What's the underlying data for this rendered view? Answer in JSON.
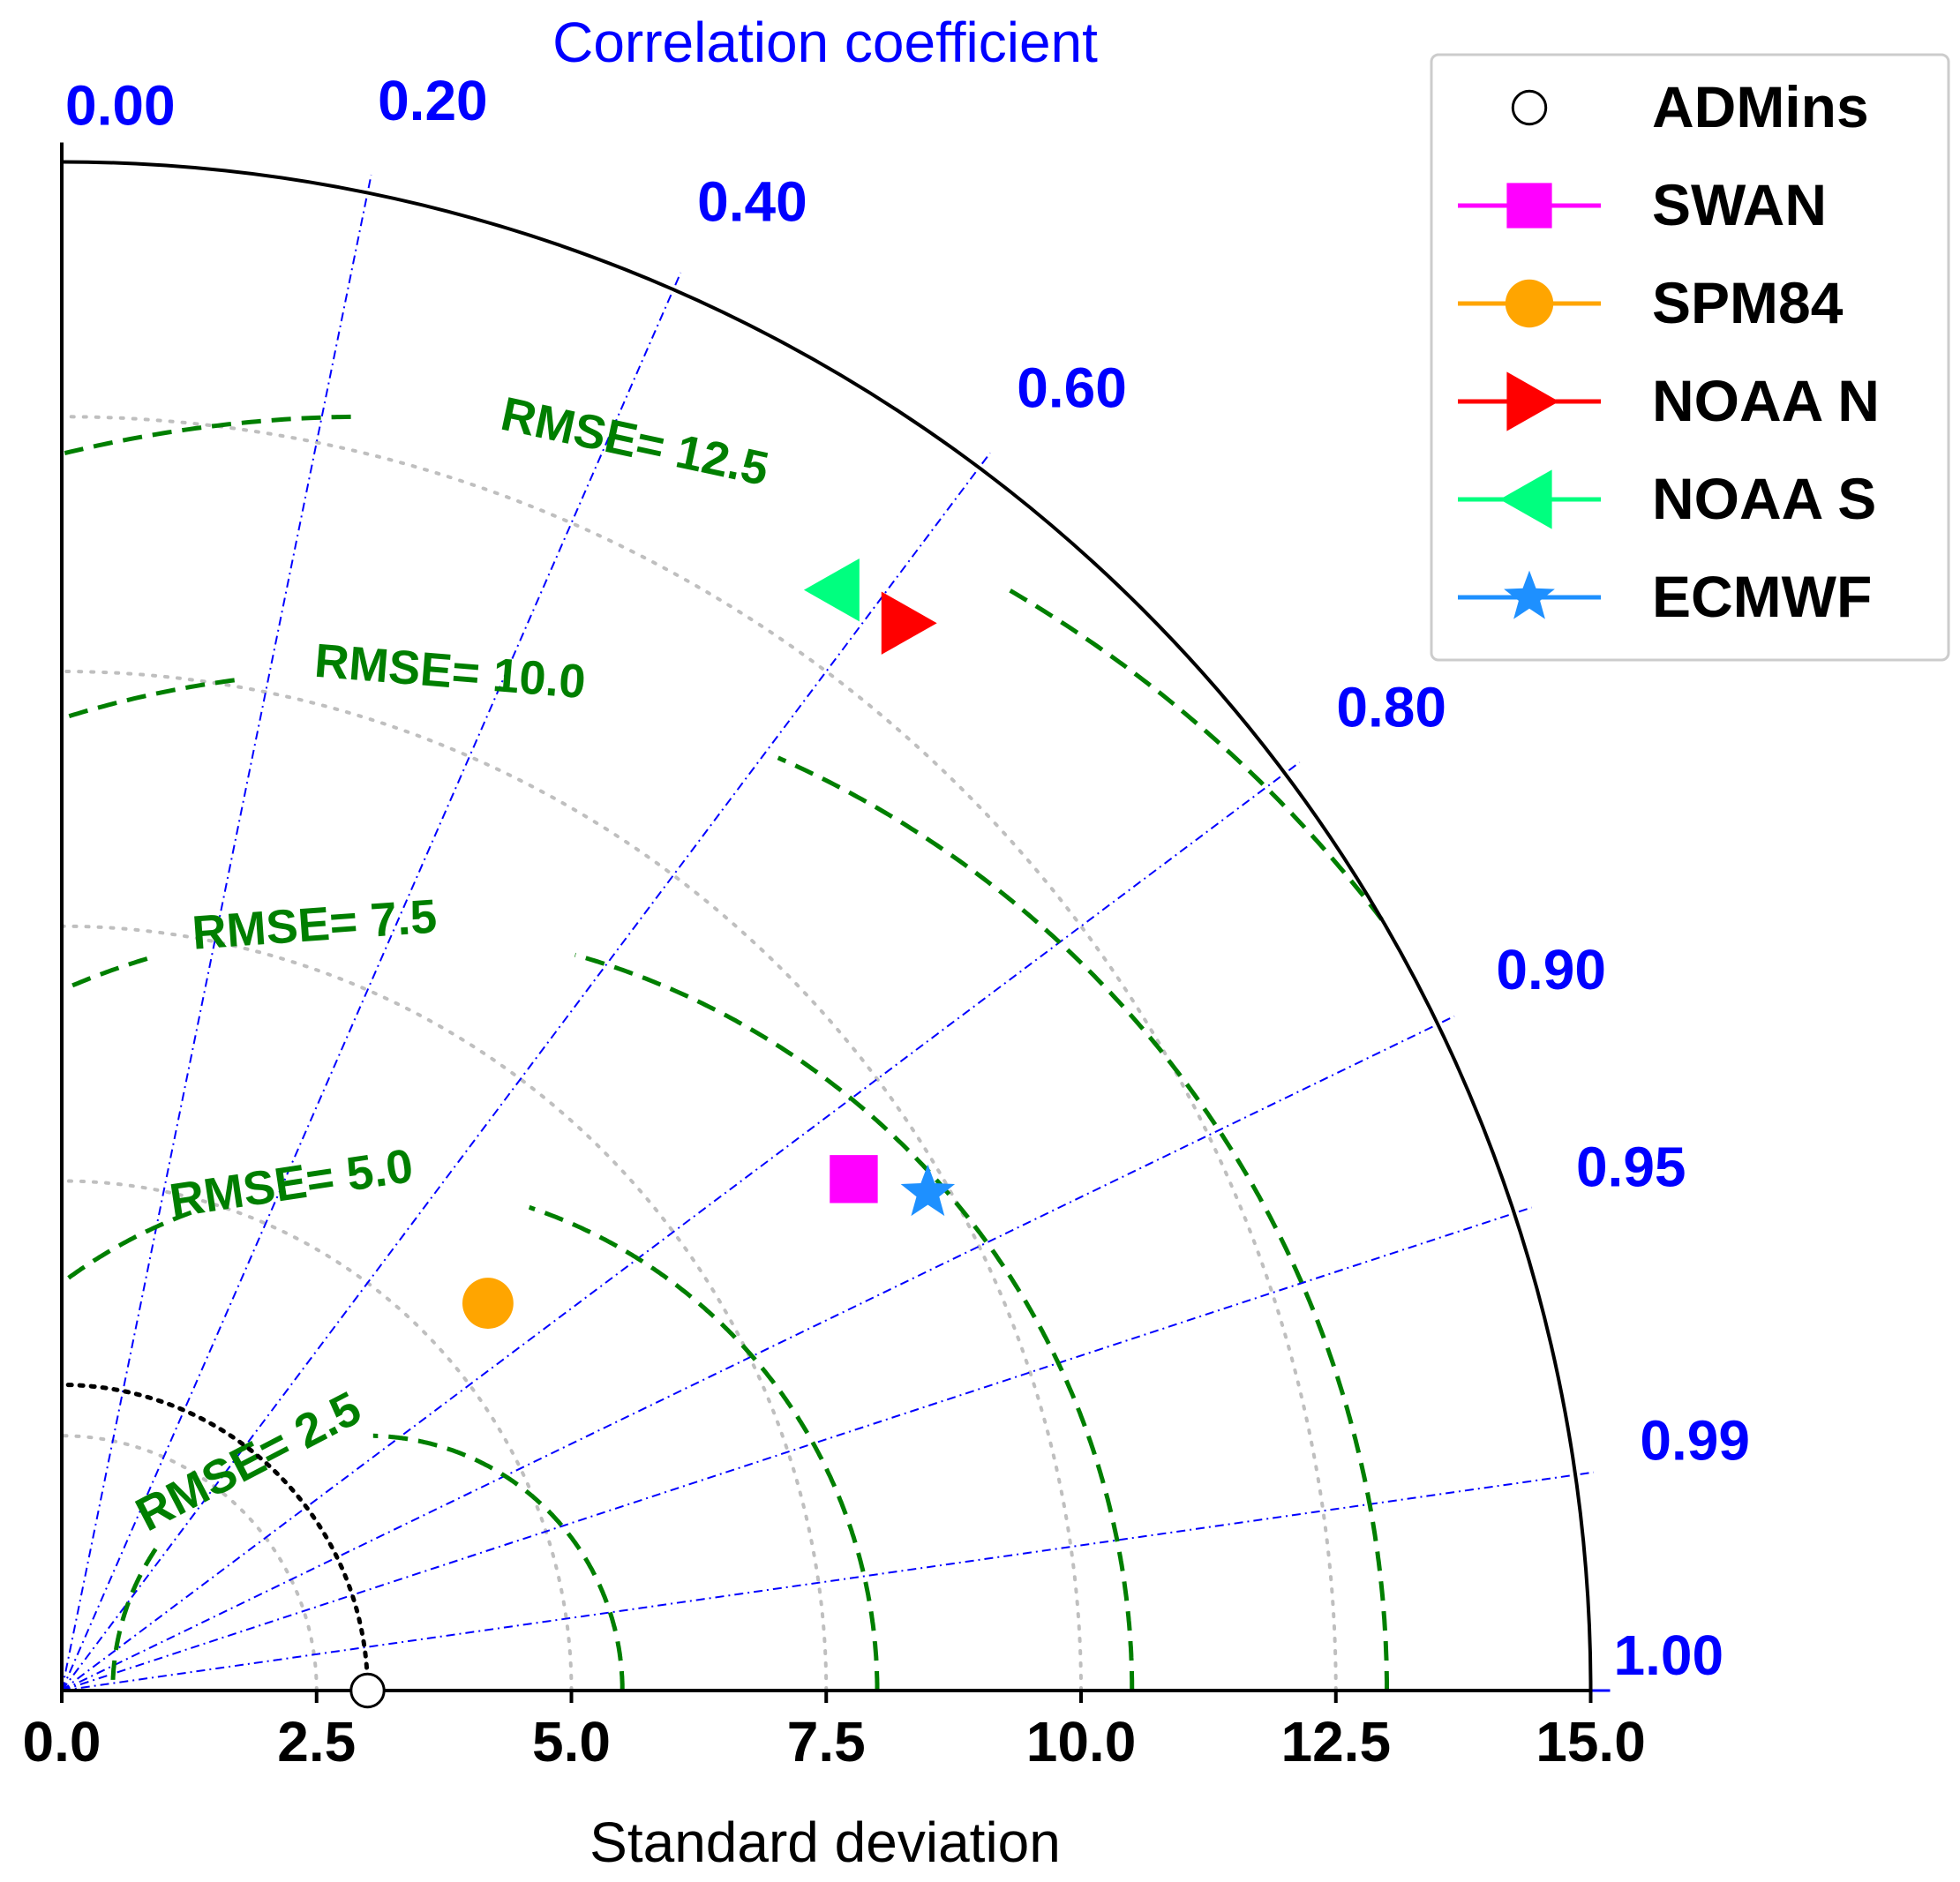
{
  "chart_data": {
    "type": "taylor_diagram",
    "title": "Correlation coefficient",
    "xlabel": "Standard deviation",
    "std_range": [
      0,
      15
    ],
    "std_ticks": [
      {
        "value": 0.0,
        "label": "0.0"
      },
      {
        "value": 2.5,
        "label": "2.5"
      },
      {
        "value": 5.0,
        "label": "5.0"
      },
      {
        "value": 7.5,
        "label": "7.5"
      },
      {
        "value": 10.0,
        "label": "10.0"
      },
      {
        "value": 12.5,
        "label": "12.5"
      },
      {
        "value": 15.0,
        "label": "15.0"
      }
    ],
    "correlation_ticks": [
      {
        "value": 0.0,
        "label": "0.00"
      },
      {
        "value": 0.2,
        "label": "0.20"
      },
      {
        "value": 0.4,
        "label": "0.40"
      },
      {
        "value": 0.6,
        "label": "0.60"
      },
      {
        "value": 0.8,
        "label": "0.80"
      },
      {
        "value": 0.9,
        "label": "0.90"
      },
      {
        "value": 0.95,
        "label": "0.95"
      },
      {
        "value": 0.99,
        "label": "0.99"
      },
      {
        "value": 1.0,
        "label": "1.00"
      }
    ],
    "reference_std": 3.0,
    "rmse_contours": [
      {
        "value": 2.5,
        "label": "RMSE= 2.5"
      },
      {
        "value": 5.0,
        "label": "RMSE= 5.0"
      },
      {
        "value": 7.5,
        "label": "RMSE= 7.5"
      },
      {
        "value": 10.0,
        "label": "RMSE= 10.0"
      },
      {
        "value": 12.5,
        "label": "RMSE= 12.5"
      }
    ],
    "series": [
      {
        "name": "ADMins",
        "std": 3.0,
        "corr": 1.0,
        "marker": "circle-open",
        "color": "#000000"
      },
      {
        "name": "SWAN",
        "std": 9.25,
        "corr": 0.84,
        "marker": "square",
        "color": "#ff00ff"
      },
      {
        "name": "SPM84",
        "std": 5.65,
        "corr": 0.74,
        "marker": "circle",
        "color": "#ffa500"
      },
      {
        "name": "NOAA N",
        "std": 13.35,
        "corr": 0.62,
        "marker": "triangle-right",
        "color": "#ff0000"
      },
      {
        "name": "NOAA S",
        "std": 13.2,
        "corr": 0.575,
        "marker": "triangle-left",
        "color": "#00ff7f"
      },
      {
        "name": "ECMWF",
        "std": 9.8,
        "corr": 0.867,
        "marker": "star",
        "color": "#1e90ff"
      }
    ],
    "legend": {
      "position": "top-right"
    },
    "colors": {
      "correlation": "#0000ff",
      "rmse": "#007f00",
      "std_grid": "#bfbfbf",
      "axis": "#000000",
      "reference": "#000000"
    }
  }
}
